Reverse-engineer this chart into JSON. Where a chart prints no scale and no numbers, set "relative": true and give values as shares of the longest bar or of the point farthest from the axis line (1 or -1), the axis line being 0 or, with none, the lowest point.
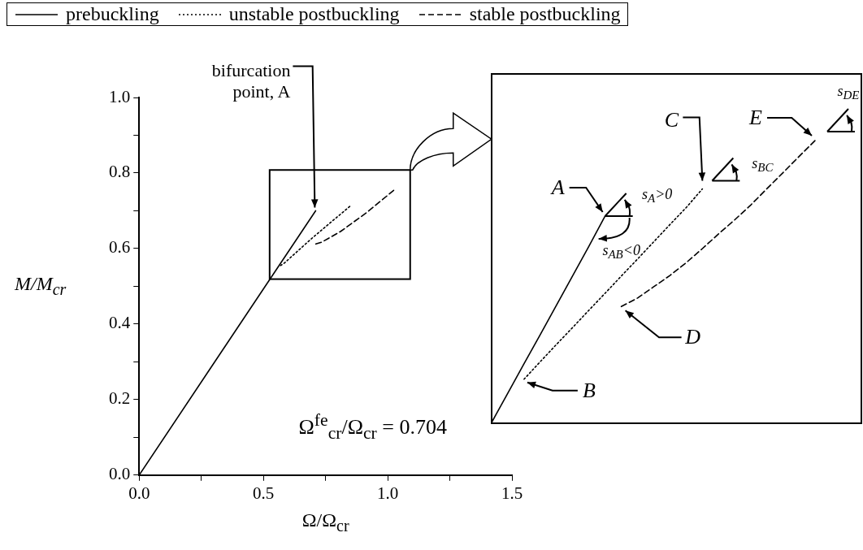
{
  "chart_data": [
    {
      "type": "line",
      "xlabel": "Ω/Ω$_{cr}$",
      "ylabel": "M/M$_{cr}$",
      "legend": "top",
      "xlim": [
        0,
        1.5
      ],
      "ylim": [
        0,
        1
      ],
      "xticks": [
        {
          "value": 0,
          "label": "0.0"
        },
        {
          "value": 0.25,
          "label": null
        },
        {
          "value": 0.5,
          "label": "0.5"
        },
        {
          "value": 0.75,
          "label": null
        },
        {
          "value": 1,
          "label": "1.0"
        },
        {
          "value": 1.25,
          "label": null
        },
        {
          "value": 1.5,
          "label": "1.5"
        }
      ],
      "yticks": [
        {
          "value": 0,
          "label": "0.0"
        },
        {
          "value": 0.1,
          "label": null
        },
        {
          "value": 0.2,
          "label": "0.2"
        },
        {
          "value": 0.3,
          "label": null
        },
        {
          "value": 0.4,
          "label": "0.4"
        },
        {
          "value": 0.5,
          "label": null
        },
        {
          "value": 0.6,
          "label": "0.6"
        },
        {
          "value": 0.7,
          "label": null
        },
        {
          "value": 0.8,
          "label": "0.8"
        },
        {
          "value": 0.9,
          "label": null
        },
        {
          "value": 1,
          "label": "1.0"
        }
      ],
      "series": [
        {
          "name": "prebuckling",
          "color": "#000000",
          "line_style": "solid",
          "x": [
            0,
            0.71
          ],
          "values": [
            0,
            0.7
          ]
        },
        {
          "name": "unstable postbuckling",
          "color": "#000000",
          "line_style": "dotted",
          "x": [
            0.569,
            0.585,
            0.7,
            0.85
          ],
          "values": [
            0.555,
            0.562,
            0.63,
            0.713
          ]
        },
        {
          "name": "stable postbuckling",
          "color": "#000000",
          "line_style": "dashed",
          "x": [
            0.711,
            0.735,
            0.81,
            0.915,
            1.024
          ],
          "values": [
            0.612,
            0.617,
            0.645,
            0.695,
            0.754
          ]
        }
      ],
      "annotations": [
        {
          "text": "bifurcation point, A",
          "x": 0.71,
          "y": 0.7
        },
        "Ω$^{fe}$$_{cr}$/Ω$_{cr}$ = 0.704"
      ]
    },
    {
      "type": "line",
      "relative": true,
      "categories": [
        null,
        null,
        null,
        null,
        null,
        null,
        null,
        null,
        null,
        null,
        null,
        null,
        null,
        null,
        null,
        null,
        null,
        null,
        null,
        null,
        null
      ],
      "series": [
        {
          "color": "#000000",
          "line_style": "solid",
          "values": [
            0,
            0.104,
            0.208,
            0.311,
            0.415,
            0.519,
            0.623,
            0.73,
            null,
            null,
            null,
            null,
            null,
            null,
            null,
            null,
            null,
            null,
            null,
            null,
            null
          ]
        },
        {
          "color": "#000000",
          "line_style": "dotted",
          "values": [
            null,
            null,
            0.153,
            0.215,
            0.276,
            0.336,
            0.397,
            0.457,
            0.518,
            0.578,
            0.639,
            0.7,
            0.76,
            0.826,
            null,
            null,
            null,
            null,
            null,
            null,
            null
          ]
        },
        {
          "color": "#000000",
          "line_style": "dashed",
          "values": [
            null,
            null,
            null,
            null,
            null,
            null,
            null,
            null,
            0.41,
            0.44,
            0.48,
            0.52,
            0.565,
            0.615,
            0.667,
            0.717,
            0.77,
            0.828,
            0.885,
            0.943,
            1
          ]
        }
      ],
      "annotations": [
        "A",
        "B",
        "C",
        "D",
        "E",
        "s$_{A}$>0",
        "s$_{AB}$<0",
        "s$_{BC}$",
        "s$_{DE}$"
      ]
    }
  ]
}
